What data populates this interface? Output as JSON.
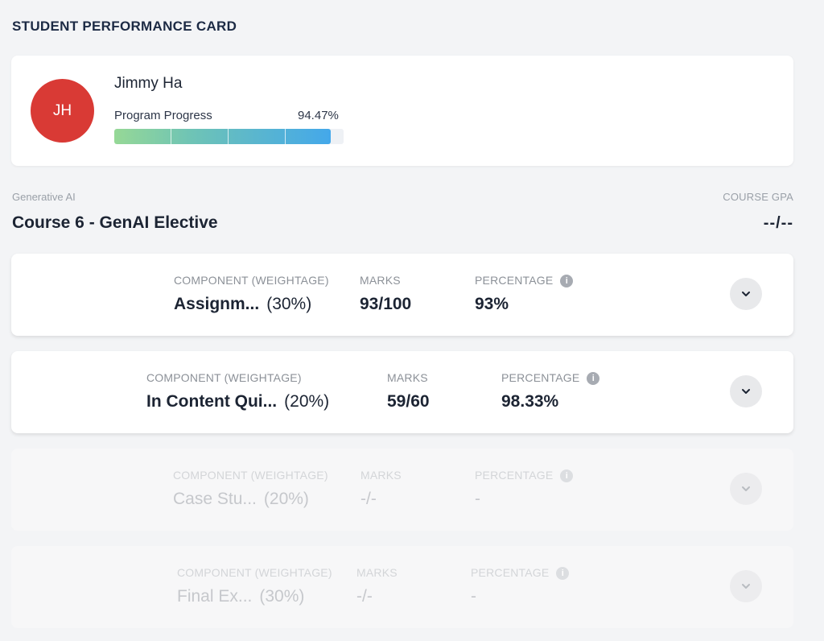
{
  "page": {
    "title": "STUDENT PERFORMANCE CARD"
  },
  "student": {
    "initials": "JH",
    "name": "Jimmy Ha",
    "progress_label": "Program Progress",
    "progress_value": "94.47%",
    "progress_fraction": 0.9447,
    "avatar_color": "#d93a35"
  },
  "course": {
    "category": "Generative AI",
    "title": "Course 6 - GenAI Elective",
    "gpa_label": "COURSE GPA",
    "gpa_value": "--/--"
  },
  "components": [
    {
      "header_component": "COMPONENT (WEIGHTAGE)",
      "header_marks": "MARKS",
      "header_percentage": "PERCENTAGE",
      "name": "Assignm...",
      "weight": "(30%)",
      "marks": "93/100",
      "percentage": "93%",
      "state": "graded"
    },
    {
      "header_component": "COMPONENT (WEIGHTAGE)",
      "header_marks": "MARKS",
      "header_percentage": "PERCENTAGE",
      "name": "In Content Qui...",
      "weight": "(20%)",
      "marks": "59/60",
      "percentage": "98.33%",
      "state": "graded"
    },
    {
      "header_component": "COMPONENT (WEIGHTAGE)",
      "header_marks": "MARKS",
      "header_percentage": "PERCENTAGE",
      "name": "Case Stu...",
      "weight": "(20%)",
      "marks": "-/-",
      "percentage": "-",
      "state": "pending"
    },
    {
      "header_component": "COMPONENT (WEIGHTAGE)",
      "header_marks": "MARKS",
      "header_percentage": "PERCENTAGE",
      "name": "Final Ex...",
      "weight": "(30%)",
      "marks": "-/-",
      "percentage": "-",
      "state": "pending"
    }
  ],
  "icons": {
    "info": "info-icon",
    "expand": "chevron-down-icon"
  }
}
